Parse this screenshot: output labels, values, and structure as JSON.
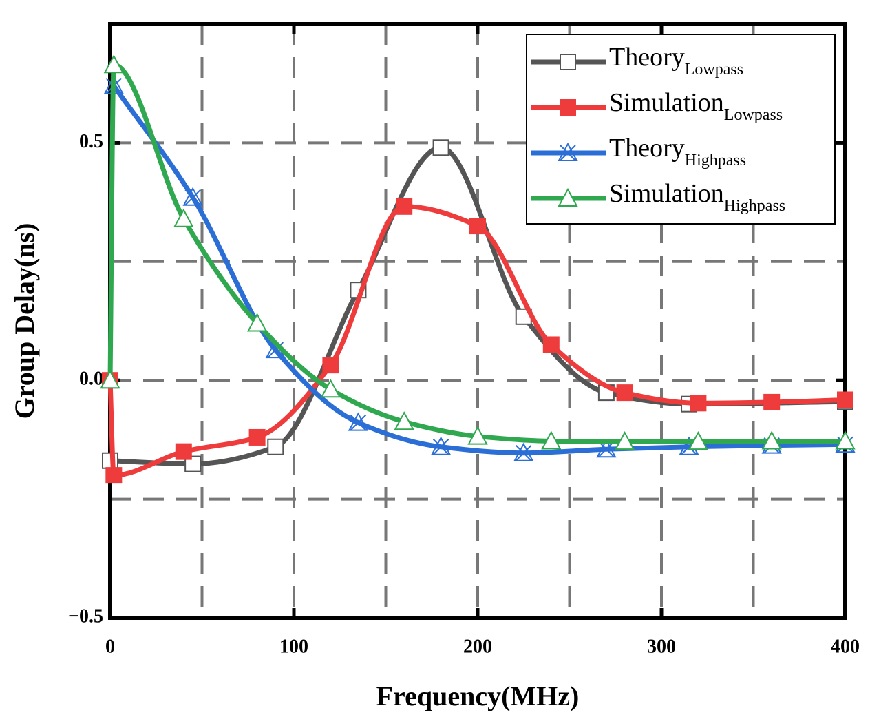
{
  "chart_data": {
    "type": "line",
    "x_label": "Frequency(MHz)",
    "y_label": "Group Delay(ns)",
    "xlim": [
      0,
      400
    ],
    "ylim": [
      -0.5,
      0.75
    ],
    "xticks": [
      0,
      100,
      200,
      300,
      400
    ],
    "yticks": [
      {
        "value": -0.5,
        "label": "−0.5"
      },
      {
        "value": 0,
        "label": "0.0"
      },
      0.5
    ],
    "xgrid": [
      50,
      100,
      150,
      200,
      250,
      300,
      350
    ],
    "ygrid": [
      -0.25,
      0,
      0.25,
      0.5
    ],
    "grid": true,
    "legend": "upper right",
    "series": [
      {
        "name": "Theory",
        "name_sub": "Lowpass",
        "color": "#555555",
        "marker": "square-open",
        "x": [
          0,
          45,
          90,
          135,
          180,
          225,
          270,
          315,
          400
        ],
        "values": [
          -0.169,
          -0.176,
          -0.14,
          0.19,
          0.49,
          0.134,
          -0.026,
          -0.05,
          -0.045
        ]
      },
      {
        "name": "Simulation",
        "name_sub": "Lowpass",
        "color": "#ee3b3b",
        "marker": "square-filled",
        "x": [
          0,
          2,
          40,
          80,
          120,
          160,
          200,
          240,
          280,
          320,
          360,
          400
        ],
        "values": [
          0,
          -0.2,
          -0.15,
          -0.12,
          0.032,
          0.366,
          0.325,
          0.075,
          -0.026,
          -0.048,
          -0.046,
          -0.041
        ]
      },
      {
        "name": "Theory",
        "name_sub": "Highpass",
        "color": "#2b6fd6",
        "marker": "triangle-x",
        "x": [
          2,
          45,
          90,
          135,
          180,
          225,
          270,
          315,
          360,
          400
        ],
        "values": [
          0.62,
          0.385,
          0.064,
          -0.089,
          -0.14,
          -0.153,
          -0.145,
          -0.14,
          -0.137,
          -0.135
        ]
      },
      {
        "name": "Simulation",
        "name_sub": "Highpass",
        "color": "#2fa84f",
        "marker": "triangle-open",
        "x": [
          0,
          2,
          40,
          80,
          120,
          160,
          200,
          240,
          280,
          320,
          360,
          400
        ],
        "values": [
          0,
          0.664,
          0.34,
          0.12,
          -0.019,
          -0.087,
          -0.118,
          -0.128,
          -0.129,
          -0.129,
          -0.128,
          -0.128
        ]
      }
    ]
  }
}
